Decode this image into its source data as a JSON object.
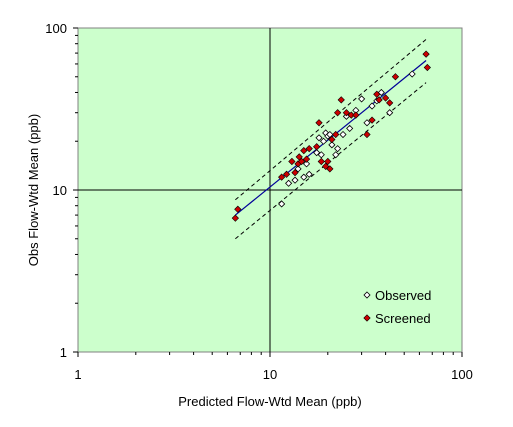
{
  "chart_data": {
    "type": "scatter",
    "xlabel": "Predicted Flow-Wtd Mean (ppb)",
    "ylabel": "Obs Flow-Wtd Mean (ppb)",
    "xscale": "log",
    "yscale": "log",
    "xlim": [
      1,
      100
    ],
    "ylim": [
      1,
      100
    ],
    "x_ticks": [
      "1",
      "10",
      "100"
    ],
    "y_ticks": [
      "1",
      "10",
      "100"
    ],
    "grid": "major lines at 10",
    "legend_position": "bottom-right",
    "colors": {
      "plot_background": "#ccffcc",
      "observed": "#ffffff",
      "screened": "#cc0000",
      "fit_line": "#000099",
      "band": "#000000"
    },
    "fit_line": {
      "x": [
        6.6,
        65
      ],
      "y": [
        7.0,
        63
      ]
    },
    "band_upper": {
      "x": [
        6.6,
        65
      ],
      "y": [
        8.7,
        85
      ]
    },
    "band_lower": {
      "x": [
        6.6,
        65
      ],
      "y": [
        5.0,
        46
      ]
    },
    "series": [
      {
        "name": "Observed",
        "marker": "diamond-open",
        "x": [
          11.5,
          12.5,
          13.5,
          14.0,
          15.0,
          15.5,
          16.0,
          17.5,
          18.0,
          18.5,
          19.0,
          19.5,
          20.0,
          20.5,
          21.0,
          22.0,
          22.5,
          24.0,
          25.0,
          26.0,
          28.0,
          30.0,
          32.0,
          34.0,
          36.0,
          38.0,
          42.0,
          55.0
        ],
        "y": [
          8.2,
          11.0,
          11.5,
          13.5,
          12.0,
          14.5,
          12.5,
          17.0,
          21.0,
          16.5,
          20.0,
          22.5,
          21.5,
          22.0,
          19.0,
          16.5,
          18.0,
          22.0,
          28.5,
          24.0,
          31.0,
          36.5,
          26.0,
          33.0,
          35.5,
          40.0,
          30.0,
          52.0
        ]
      },
      {
        "name": "Screened",
        "marker": "diamond-filled",
        "x": [
          6.6,
          6.8,
          11.5,
          12.2,
          13.0,
          13.5,
          14.0,
          14.2,
          14.6,
          15.0,
          15.5,
          16.0,
          17.5,
          18.0,
          18.5,
          19.5,
          20.0,
          20.5,
          21.0,
          22.0,
          22.5,
          23.5,
          25.0,
          26.5,
          28.0,
          32.0,
          34.0,
          36.0,
          37.0,
          40.0,
          42.0,
          45.0,
          65.0,
          66.0
        ],
        "y": [
          6.7,
          7.6,
          12.0,
          12.5,
          15.0,
          12.8,
          14.5,
          16.0,
          15.0,
          17.5,
          15.5,
          18.0,
          18.5,
          26.0,
          15.0,
          14.0,
          15.0,
          13.5,
          20.5,
          22.0,
          30.0,
          36.0,
          30.0,
          29.0,
          29.0,
          22.0,
          27.0,
          39.0,
          36.0,
          37.0,
          34.5,
          50.0,
          69.0,
          57.0
        ]
      }
    ]
  }
}
